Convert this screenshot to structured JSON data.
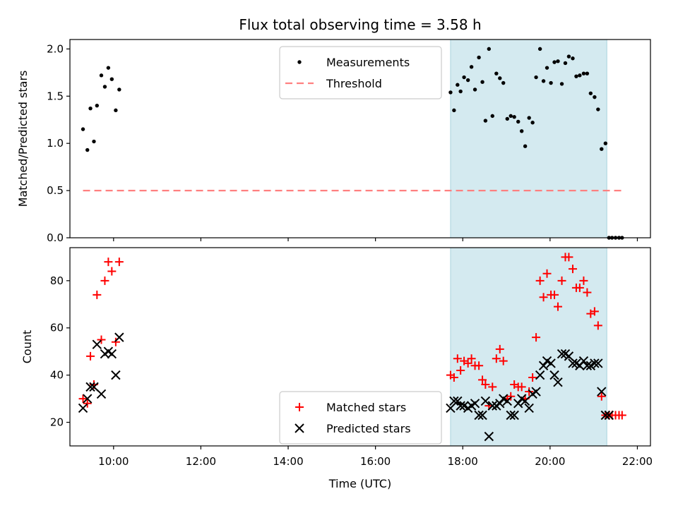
{
  "chart_data": [
    {
      "type": "scatter",
      "title": "Flux total observing time = 3.58 h",
      "xlabel": "",
      "ylabel": "Matched/Predicted stars",
      "xlim": [
        9.0,
        22.3
      ],
      "ylim": [
        0.0,
        2.1
      ],
      "yticks": [
        0.0,
        0.5,
        1.0,
        1.5,
        2.0
      ],
      "ytick_labels": [
        "0.0",
        "0.5",
        "1.0",
        "1.5",
        "2.0"
      ],
      "grid": false,
      "legend_position": "top-center",
      "shaded_region": [
        17.72,
        21.3
      ],
      "shade_color": "#d4eaf0",
      "series": [
        {
          "name": "Measurements",
          "marker": "dot",
          "color": "#000000",
          "points": [
            [
              9.3,
              1.15
            ],
            [
              9.4,
              0.93
            ],
            [
              9.47,
              1.37
            ],
            [
              9.55,
              1.02
            ],
            [
              9.62,
              1.4
            ],
            [
              9.72,
              1.72
            ],
            [
              9.8,
              1.6
            ],
            [
              9.88,
              1.8
            ],
            [
              9.96,
              1.68
            ],
            [
              10.05,
              1.35
            ],
            [
              10.13,
              1.57
            ],
            [
              17.72,
              1.54
            ],
            [
              17.8,
              1.35
            ],
            [
              17.88,
              1.62
            ],
            [
              17.95,
              1.55
            ],
            [
              18.03,
              1.7
            ],
            [
              18.12,
              1.67
            ],
            [
              18.2,
              1.81
            ],
            [
              18.28,
              1.57
            ],
            [
              18.37,
              1.91
            ],
            [
              18.45,
              1.65
            ],
            [
              18.52,
              1.24
            ],
            [
              18.6,
              2.0
            ],
            [
              18.68,
              1.29
            ],
            [
              18.77,
              1.74
            ],
            [
              18.85,
              1.69
            ],
            [
              18.93,
              1.64
            ],
            [
              19.02,
              1.26
            ],
            [
              19.1,
              1.29
            ],
            [
              19.18,
              1.28
            ],
            [
              19.27,
              1.23
            ],
            [
              19.35,
              1.13
            ],
            [
              19.43,
              0.97
            ],
            [
              19.52,
              1.27
            ],
            [
              19.6,
              1.22
            ],
            [
              19.68,
              1.7
            ],
            [
              19.77,
              2.0
            ],
            [
              19.85,
              1.66
            ],
            [
              19.93,
              1.8
            ],
            [
              20.02,
              1.64
            ],
            [
              20.1,
              1.86
            ],
            [
              20.18,
              1.87
            ],
            [
              20.27,
              1.63
            ],
            [
              20.35,
              1.85
            ],
            [
              20.43,
              1.92
            ],
            [
              20.52,
              1.9
            ],
            [
              20.6,
              1.71
            ],
            [
              20.68,
              1.72
            ],
            [
              20.77,
              1.74
            ],
            [
              20.85,
              1.74
            ],
            [
              20.93,
              1.53
            ],
            [
              21.02,
              1.49
            ],
            [
              21.1,
              1.36
            ],
            [
              21.18,
              0.94
            ],
            [
              21.27,
              1.0
            ],
            [
              21.35,
              0.0
            ],
            [
              21.42,
              0.0
            ],
            [
              21.5,
              0.0
            ],
            [
              21.58,
              0.0
            ],
            [
              21.65,
              0.0
            ]
          ]
        },
        {
          "name": "Threshold",
          "marker": "dashed-line",
          "color": "#ff8080",
          "points": [
            [
              9.3,
              0.5
            ],
            [
              21.65,
              0.5
            ]
          ]
        }
      ]
    },
    {
      "type": "scatter",
      "xlabel": "Time (UTC)",
      "ylabel": "Count",
      "xlim": [
        9.0,
        22.3
      ],
      "ylim": [
        10,
        94
      ],
      "yticks": [
        20,
        40,
        60,
        80
      ],
      "ytick_labels": [
        "20",
        "40",
        "60",
        "80"
      ],
      "xticks": [
        10,
        12,
        14,
        16,
        18,
        20,
        22
      ],
      "xtick_labels": [
        "10:00",
        "12:00",
        "14:00",
        "16:00",
        "18:00",
        "20:00",
        "22:00"
      ],
      "grid": false,
      "legend_position": "bottom-center",
      "shaded_region": [
        17.72,
        21.3
      ],
      "shade_color": "#d4eaf0",
      "series": [
        {
          "name": "Matched stars",
          "marker": "plus",
          "color": "#ff0000",
          "points": [
            [
              9.3,
              30
            ],
            [
              9.4,
              28
            ],
            [
              9.47,
              48
            ],
            [
              9.55,
              36
            ],
            [
              9.62,
              74
            ],
            [
              9.72,
              55
            ],
            [
              9.8,
              80
            ],
            [
              9.88,
              88
            ],
            [
              9.96,
              84
            ],
            [
              10.05,
              54
            ],
            [
              10.13,
              88
            ],
            [
              17.72,
              40
            ],
            [
              17.8,
              39
            ],
            [
              17.88,
              47
            ],
            [
              17.95,
              42
            ],
            [
              18.03,
              46
            ],
            [
              18.12,
              45
            ],
            [
              18.2,
              47
            ],
            [
              18.28,
              44
            ],
            [
              18.37,
              44
            ],
            [
              18.45,
              38
            ],
            [
              18.52,
              36
            ],
            [
              18.6,
              27
            ],
            [
              18.68,
              35
            ],
            [
              18.77,
              47
            ],
            [
              18.85,
              51
            ],
            [
              18.93,
              46
            ],
            [
              19.02,
              30
            ],
            [
              19.1,
              31
            ],
            [
              19.18,
              36
            ],
            [
              19.27,
              35
            ],
            [
              19.35,
              35
            ],
            [
              19.43,
              30
            ],
            [
              19.52,
              33
            ],
            [
              19.6,
              39
            ],
            [
              19.68,
              56
            ],
            [
              19.77,
              80
            ],
            [
              19.85,
              73
            ],
            [
              19.93,
              83
            ],
            [
              20.02,
              74
            ],
            [
              20.1,
              74
            ],
            [
              20.18,
              69
            ],
            [
              20.27,
              80
            ],
            [
              20.35,
              90
            ],
            [
              20.43,
              90
            ],
            [
              20.52,
              85
            ],
            [
              20.6,
              77
            ],
            [
              20.68,
              77
            ],
            [
              20.77,
              80
            ],
            [
              20.85,
              75
            ],
            [
              20.93,
              66
            ],
            [
              21.02,
              67
            ],
            [
              21.1,
              61
            ],
            [
              21.18,
              31
            ],
            [
              21.27,
              23
            ],
            [
              21.35,
              23
            ],
            [
              21.42,
              23
            ],
            [
              21.5,
              23
            ],
            [
              21.58,
              23
            ],
            [
              21.65,
              23
            ]
          ]
        },
        {
          "name": "Predicted stars",
          "marker": "x",
          "color": "#000000",
          "points": [
            [
              9.3,
              26
            ],
            [
              9.4,
              30
            ],
            [
              9.47,
              35
            ],
            [
              9.55,
              35
            ],
            [
              9.62,
              53
            ],
            [
              9.72,
              32
            ],
            [
              9.8,
              49
            ],
            [
              9.88,
              50
            ],
            [
              9.96,
              49
            ],
            [
              10.05,
              40
            ],
            [
              10.13,
              56
            ],
            [
              17.72,
              26
            ],
            [
              17.8,
              29
            ],
            [
              17.88,
              29
            ],
            [
              17.95,
              27
            ],
            [
              18.03,
              27
            ],
            [
              18.12,
              26
            ],
            [
              18.2,
              27
            ],
            [
              18.28,
              28
            ],
            [
              18.37,
              23
            ],
            [
              18.45,
              23
            ],
            [
              18.52,
              29
            ],
            [
              18.6,
              14
            ],
            [
              18.68,
              27
            ],
            [
              18.77,
              27
            ],
            [
              18.85,
              28
            ],
            [
              18.93,
              30
            ],
            [
              19.02,
              29
            ],
            [
              19.1,
              23
            ],
            [
              19.18,
              23
            ],
            [
              19.27,
              28
            ],
            [
              19.35,
              30
            ],
            [
              19.43,
              29
            ],
            [
              19.52,
              26
            ],
            [
              19.6,
              32
            ],
            [
              19.68,
              33
            ],
            [
              19.77,
              40
            ],
            [
              19.85,
              44
            ],
            [
              19.93,
              46
            ],
            [
              20.02,
              45
            ],
            [
              20.1,
              40
            ],
            [
              20.18,
              37
            ],
            [
              20.27,
              49
            ],
            [
              20.35,
              49
            ],
            [
              20.43,
              48
            ],
            [
              20.52,
              45
            ],
            [
              20.6,
              45
            ],
            [
              20.68,
              44
            ],
            [
              20.77,
              46
            ],
            [
              20.85,
              44
            ],
            [
              20.93,
              44
            ],
            [
              21.02,
              45
            ],
            [
              21.1,
              45
            ],
            [
              21.18,
              33
            ],
            [
              21.27,
              23
            ],
            [
              21.35,
              23
            ]
          ]
        }
      ]
    }
  ]
}
